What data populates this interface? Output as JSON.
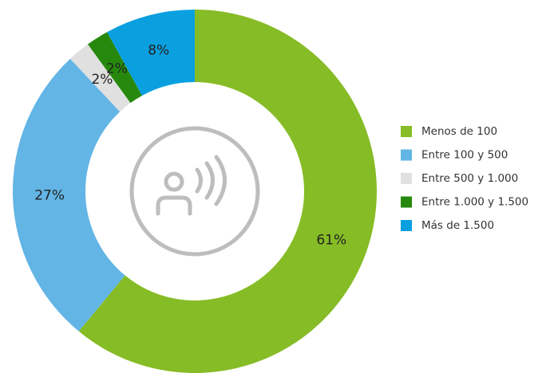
{
  "chart_data": {
    "type": "donut",
    "categories": [
      "Menos de 100",
      "Entre 100 y 500",
      "Entre 500 y 1.000",
      "Entre 1.000 y 1.500",
      "Más de 1.500"
    ],
    "values": [
      61,
      27,
      2,
      2,
      8
    ],
    "value_labels": [
      "61%",
      "27%",
      "2%",
      "2%",
      "8%"
    ],
    "colors": [
      "#86bc25",
      "#62b5e5",
      "#e0e0e0",
      "#26890d",
      "#0aa0e0"
    ],
    "legend": "right"
  }
}
